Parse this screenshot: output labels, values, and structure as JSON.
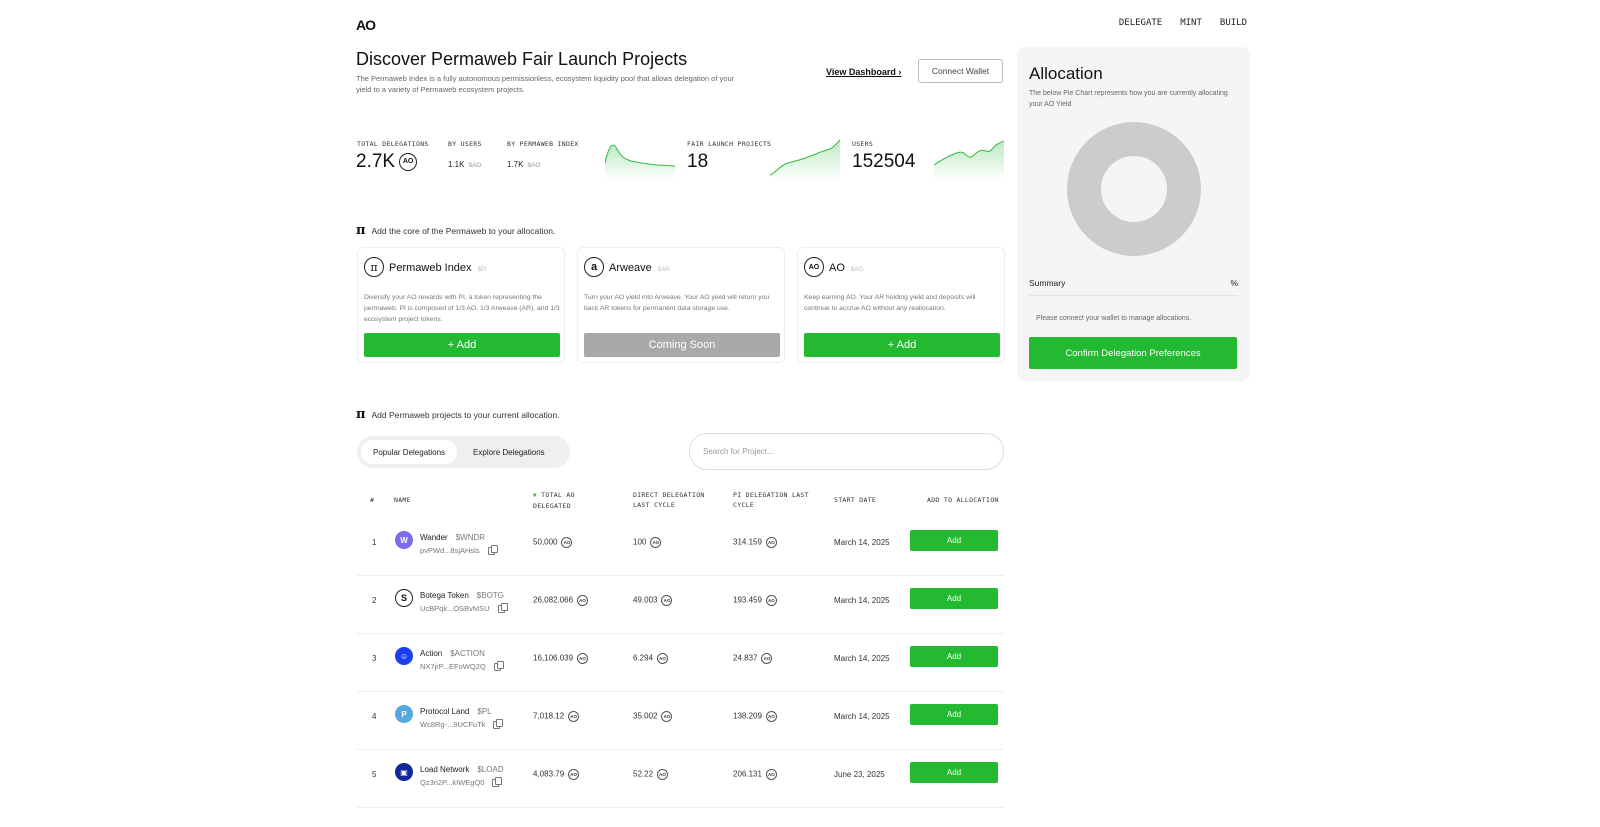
{
  "nav": {
    "logo": "AO",
    "links": [
      "DELEGATE",
      "MINT",
      "BUILD"
    ]
  },
  "header": {
    "title": "Discover Permaweb Fair Launch Projects",
    "subtitle": "The Permaweb Index is a fully autonomous permissionless, ecosystem liquidity pool that allows delegation of your yield to a variety of Permaweb ecosystem projects.",
    "view_dashboard": "View Dashboard ›",
    "connect_wallet": "Connect Wallet"
  },
  "stats": {
    "total_delegations_label": "TOTAL DELEGATIONS",
    "total_delegations_value": "2.7K",
    "by_users_label": "BY USERS",
    "by_users_value": "1.1K",
    "by_index_label": "BY PERMAWEB INDEX",
    "by_index_value": "1.7K",
    "unit": "$AO",
    "fair_launch_label": "FAIR LAUNCH PROJECTS",
    "fair_launch_value": "18",
    "users_label": "USERS",
    "users_value": "152504",
    "ao_coin": "AO"
  },
  "core_section": {
    "heading": "Add the core of the Permaweb to your allocation.",
    "cards": [
      {
        "icon": "π",
        "title": "Permaweb Index",
        "ticker": "$PI",
        "desc": "Diversify your AO rewards with PI, a token representing the permaweb. PI is composed of 1/3 AO, 1/3 Arweave (AR), and 1/3 ecosystem project tokens.",
        "button": "+ Add"
      },
      {
        "icon": "a",
        "title": "Arweave",
        "ticker": "$AR",
        "desc": "Turn your AO yield into Arweave. Your AO yield will return you back AR tokens for permanent data storage use.",
        "button": "Coming Soon"
      },
      {
        "icon": "AO",
        "title": "AO",
        "ticker": "$AO",
        "desc": "Keep earning AO. Your AR holding yield and deposits will continue to accrue AO without any reallocation.",
        "button": "+ Add"
      }
    ]
  },
  "projects_section": {
    "heading": "Add Permaweb projects to your current allocation.",
    "tabs": [
      "Popular Delegations",
      "Explore Delegations"
    ],
    "search_placeholder": "Search for Project..."
  },
  "table": {
    "headers": {
      "num": "#",
      "name": "NAME",
      "total": "TOTAL AO DELEGATED",
      "direct": "DIRECT DELEGATION LAST CYCLE",
      "pi": "PI DELEGATION LAST CYCLE",
      "start": "START DATE",
      "add": "ADD TO ALLOCATION"
    },
    "rows": [
      {
        "num": "1",
        "name": "Wander",
        "ticker": "$WNDR",
        "addr": "pvPWd...8sjAHsls",
        "total": "50,000",
        "direct": "100",
        "pi": "314.159",
        "start": "March 14, 2025",
        "button": "Add",
        "color": "#7b6cf0"
      },
      {
        "num": "2",
        "name": "Botega Token",
        "ticker": "$BOTG",
        "addr": "UcBPqk...OSBvMSU",
        "total": "26,082.066",
        "direct": "49.003",
        "pi": "193.459",
        "start": "March 14, 2025",
        "button": "Add",
        "color": "#ffffff"
      },
      {
        "num": "3",
        "name": "Action",
        "ticker": "$ACTION",
        "addr": "NX7jrP...EFoWQ2Q",
        "total": "16,106.039",
        "direct": "6.294",
        "pi": "24.837",
        "start": "March 14, 2025",
        "button": "Add",
        "color": "#1a3ff0"
      },
      {
        "num": "4",
        "name": "Protocol Land",
        "ticker": "$PL",
        "addr": "Wc8Rg-...9UCFuTk",
        "total": "7,018.12",
        "direct": "35.002",
        "pi": "138.209",
        "start": "March 14, 2025",
        "button": "Add",
        "color": "#56a8e0"
      },
      {
        "num": "5",
        "name": "Load Network",
        "ticker": "$LOAD",
        "addr": "Qz3n2P...kIWEgQ0",
        "total": "4,083.79",
        "direct": "52.22",
        "pi": "206.131",
        "start": "June 23, 2025",
        "button": "Add",
        "color": "#12289c"
      }
    ]
  },
  "allocation": {
    "title": "Allocation",
    "subtitle": "The below Pie Chart represents how you are currently allocating your AO Yield",
    "summary_label": "Summary",
    "summary_pct": "%",
    "message": "Please connect your wallet to manage allocations.",
    "confirm_button": "Confirm Delegation Preferences"
  }
}
